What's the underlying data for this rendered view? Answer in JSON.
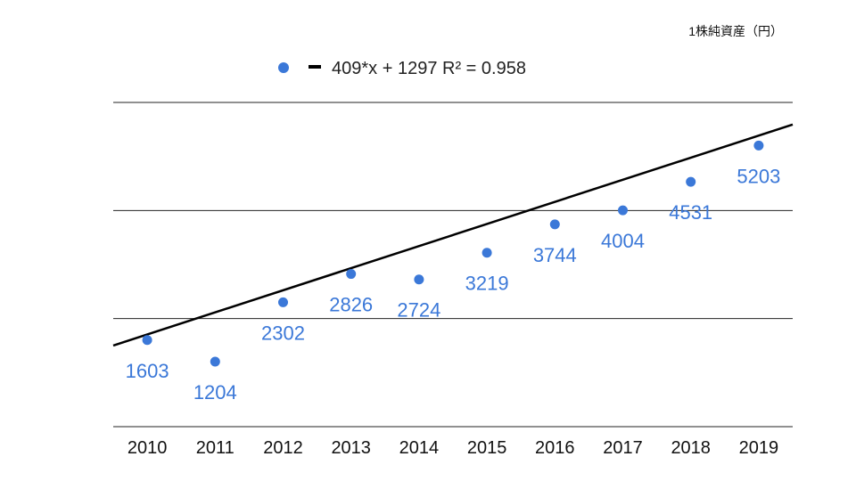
{
  "chart_data": {
    "type": "scatter",
    "title": "",
    "xlabel": "",
    "ylabel": "1株純資産（円）",
    "categories": [
      "2010",
      "2011",
      "2012",
      "2013",
      "2014",
      "2015",
      "2016",
      "2017",
      "2018",
      "2019"
    ],
    "series": [
      {
        "values": [
          1603,
          1204,
          2302,
          2826,
          2724,
          3219,
          3744,
          4004,
          4531,
          5203
        ],
        "color": "#3b78d8"
      }
    ],
    "trendline": {
      "type": "linear",
      "label": "409*x + 1297 R² = 0.958",
      "slope": 409,
      "intercept": 1297,
      "r_squared": 0.958,
      "color": "#000000"
    },
    "ylim": [
      0,
      6000
    ],
    "y_gridlines": [
      0,
      2000,
      4000,
      6000
    ],
    "grid": true,
    "legend": "top-center",
    "data_labels": true
  }
}
